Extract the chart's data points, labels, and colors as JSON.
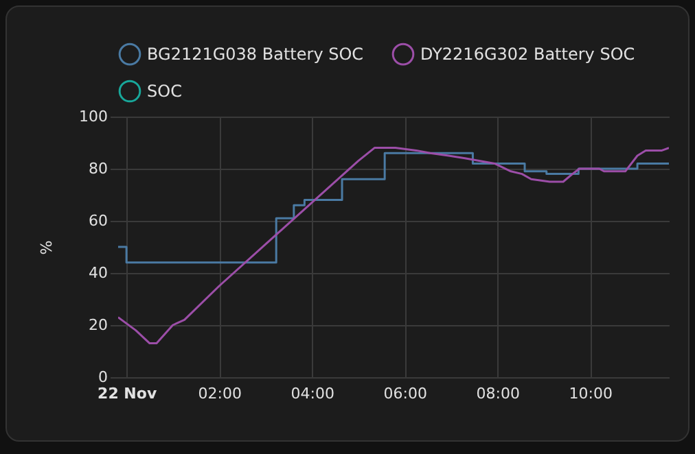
{
  "chart_data": {
    "type": "line",
    "ylabel": "%",
    "series": [
      {
        "name": "BG2121G038 Battery SOC",
        "type": "step",
        "color": "#4a7aa3",
        "x": [
          -0.18,
          0.0,
          3.23,
          3.61,
          3.84,
          4.65,
          5.57,
          7.47,
          8.59,
          9.06,
          9.75,
          11.02,
          11.7
        ],
        "values": [
          50,
          44,
          61,
          66,
          68,
          76,
          86,
          82,
          79,
          78,
          80,
          82,
          82
        ]
      },
      {
        "name": "DY2216G302 Battery SOC",
        "color": "#9c4ea8",
        "x": [
          -0.18,
          0.2,
          0.5,
          0.65,
          1.0,
          1.25,
          2.0,
          3.0,
          4.0,
          5.0,
          5.35,
          5.8,
          6.25,
          6.55,
          6.95,
          7.3,
          7.94,
          8.29,
          8.53,
          8.73,
          9.13,
          9.42,
          9.62,
          9.77,
          10.2,
          10.3,
          10.76,
          11.02,
          11.2,
          11.55,
          11.7
        ],
        "values": [
          23,
          18,
          13,
          13,
          20,
          22,
          35,
          51,
          67,
          83,
          88,
          88,
          87,
          86,
          85,
          84,
          82,
          79,
          78,
          76,
          75,
          75,
          78,
          80,
          80,
          79,
          79,
          85,
          87,
          87,
          88
        ]
      },
      {
        "name": "SOC",
        "color": "#18a79a"
      }
    ],
    "xlim": [
      -0.18,
      11.7
    ],
    "xticks": [
      {
        "value": 0,
        "label": "22 Nov"
      },
      {
        "value": 2,
        "label": "02:00"
      },
      {
        "value": 4,
        "label": "04:00"
      },
      {
        "value": 6,
        "label": "06:00"
      },
      {
        "value": 8,
        "label": "08:00"
      },
      {
        "value": 10,
        "label": "10:00"
      }
    ],
    "ylim": [
      0,
      100
    ],
    "yticks": [
      0,
      20,
      40,
      60,
      80,
      100
    ],
    "grid": true,
    "legend": "top",
    "marker": "none"
  }
}
